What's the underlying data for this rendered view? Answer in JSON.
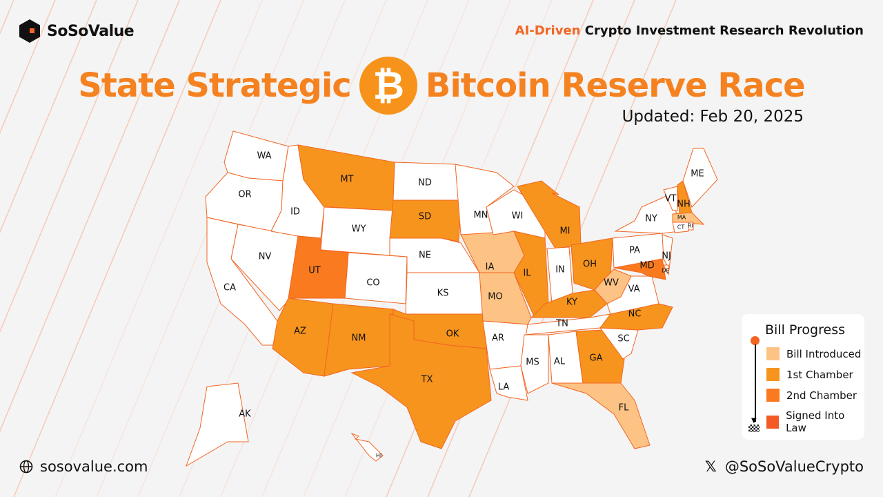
{
  "brand": {
    "name": "SoSoValue",
    "tagline_accent": "AI-Driven",
    "tagline_rest": " Crypto Investment Research Revolution"
  },
  "title": {
    "left": "State Strategic",
    "coin_symbol": "₿",
    "right": "Bitcoin Reserve Race"
  },
  "updated": "Updated: Feb 20, 2025",
  "colors": {
    "none": "#ffffff",
    "introduced": "#fdc384",
    "first": "#f7941d",
    "second": "#f97a1f",
    "signed": "#f45a23",
    "border": "#f26522"
  },
  "legend": {
    "title": "Bill Progress",
    "items": [
      {
        "label": "Bill Introduced",
        "status": "introduced"
      },
      {
        "label": "1st Chamber",
        "status": "first"
      },
      {
        "label": "2nd Chamber",
        "status": "second"
      },
      {
        "label": "Signed Into Law",
        "status": "signed"
      }
    ]
  },
  "states": {
    "WA": "none",
    "OR": "none",
    "CA": "none",
    "NV": "none",
    "ID": "none",
    "MT": "first",
    "WY": "none",
    "UT": "second",
    "CO": "none",
    "AZ": "first",
    "NM": "first",
    "ND": "none",
    "SD": "first",
    "NE": "none",
    "KS": "none",
    "OK": "first",
    "TX": "first",
    "MN": "none",
    "IA": "introduced",
    "MO": "introduced",
    "WI": "none",
    "IL": "first",
    "MI": "first",
    "IN": "none",
    "OH": "first",
    "KY": "first",
    "TN": "none",
    "AR": "none",
    "LA": "none",
    "MS": "none",
    "AL": "none",
    "GA": "first",
    "FL": "introduced",
    "SC": "none",
    "NC": "first",
    "VA": "none",
    "WV": "introduced",
    "PA": "none",
    "NY": "none",
    "MD": "second",
    "NJ": "none",
    "DE": "none",
    "VT": "none",
    "NH": "first",
    "ME": "none",
    "MA": "introduced",
    "CT": "none",
    "RI": "none",
    "AK": "none",
    "HI": "none"
  },
  "footer": {
    "website": "sosovalue.com",
    "social": "@SoSoValueCrypto"
  }
}
